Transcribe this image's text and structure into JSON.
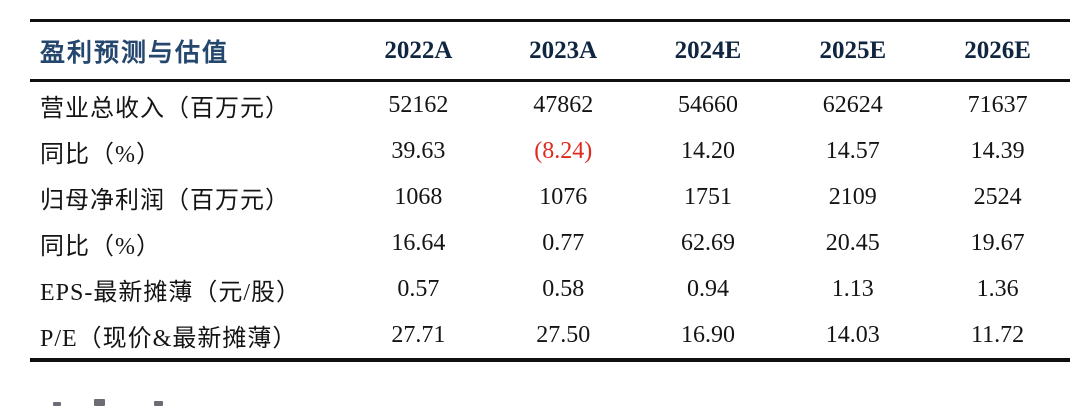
{
  "colors": {
    "title_navy": "#25476E",
    "year_header_navy": "#0F2540",
    "body_text": "#141414",
    "negative_red": "#DE2B1F",
    "rule_black": "#101010",
    "background": "#ffffff"
  },
  "table": {
    "title": "盈利预测与估值",
    "years": [
      "2022A",
      "2023A",
      "2024E",
      "2025E",
      "2026E"
    ],
    "rows": [
      {
        "label": "营业总收入（百万元）",
        "values": [
          "52162",
          "47862",
          "54660",
          "62624",
          "71637"
        ]
      },
      {
        "label": "同比（%）",
        "values": [
          "39.63",
          "(8.24)",
          "14.20",
          "14.57",
          "14.39"
        ],
        "negative_value": "(8.24)"
      },
      {
        "label": "归母净利润（百万元）",
        "values": [
          "1068",
          "1076",
          "1751",
          "2109",
          "2524"
        ]
      },
      {
        "label": "同比（%）",
        "values": [
          "16.64",
          "0.77",
          "62.69",
          "20.45",
          "19.67"
        ]
      },
      {
        "label": "EPS-最新摊薄（元/股）",
        "values": [
          "0.57",
          "0.58",
          "0.94",
          "1.13",
          "1.36"
        ]
      },
      {
        "label": "P/E（现价&最新摊薄）",
        "values": [
          "27.71",
          "27.50",
          "16.90",
          "14.03",
          "11.72"
        ]
      }
    ]
  },
  "footer": {
    "clipped_text_note": "unreadable clipped character tops at bottom-left edge"
  }
}
